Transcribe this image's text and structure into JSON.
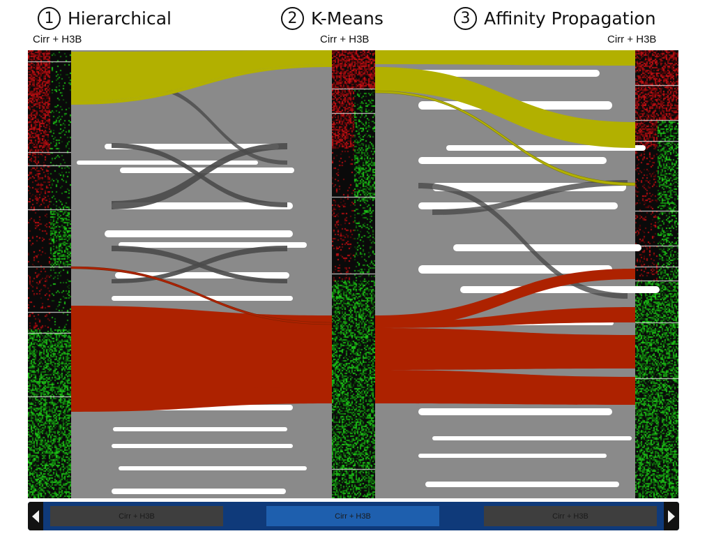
{
  "titles": [
    {
      "number": "1",
      "label": "Hierarchical"
    },
    {
      "number": "2",
      "label": "K-Means"
    },
    {
      "number": "3",
      "label": "Affinity Propagation"
    }
  ],
  "column_labels": [
    "Cirr + H3B",
    "Cirr + H3B",
    "Cirr + H3B"
  ],
  "nav": {
    "tabs": [
      "Cirr + H3B",
      "Cirr + H3B",
      "Cirr + H3B"
    ],
    "active_index": 1
  },
  "colors": {
    "flow_gray": "#8a8a8a",
    "flow_yellow": "#b2b000",
    "flow_red": "#ad2200",
    "heat_red": "#c8141a",
    "heat_green": "#22c81e",
    "nav_bar": "#0f3a7a",
    "nav_active": "#1e5fae"
  },
  "icons": [
    "chevron-left-icon",
    "chevron-right-icon"
  ]
}
